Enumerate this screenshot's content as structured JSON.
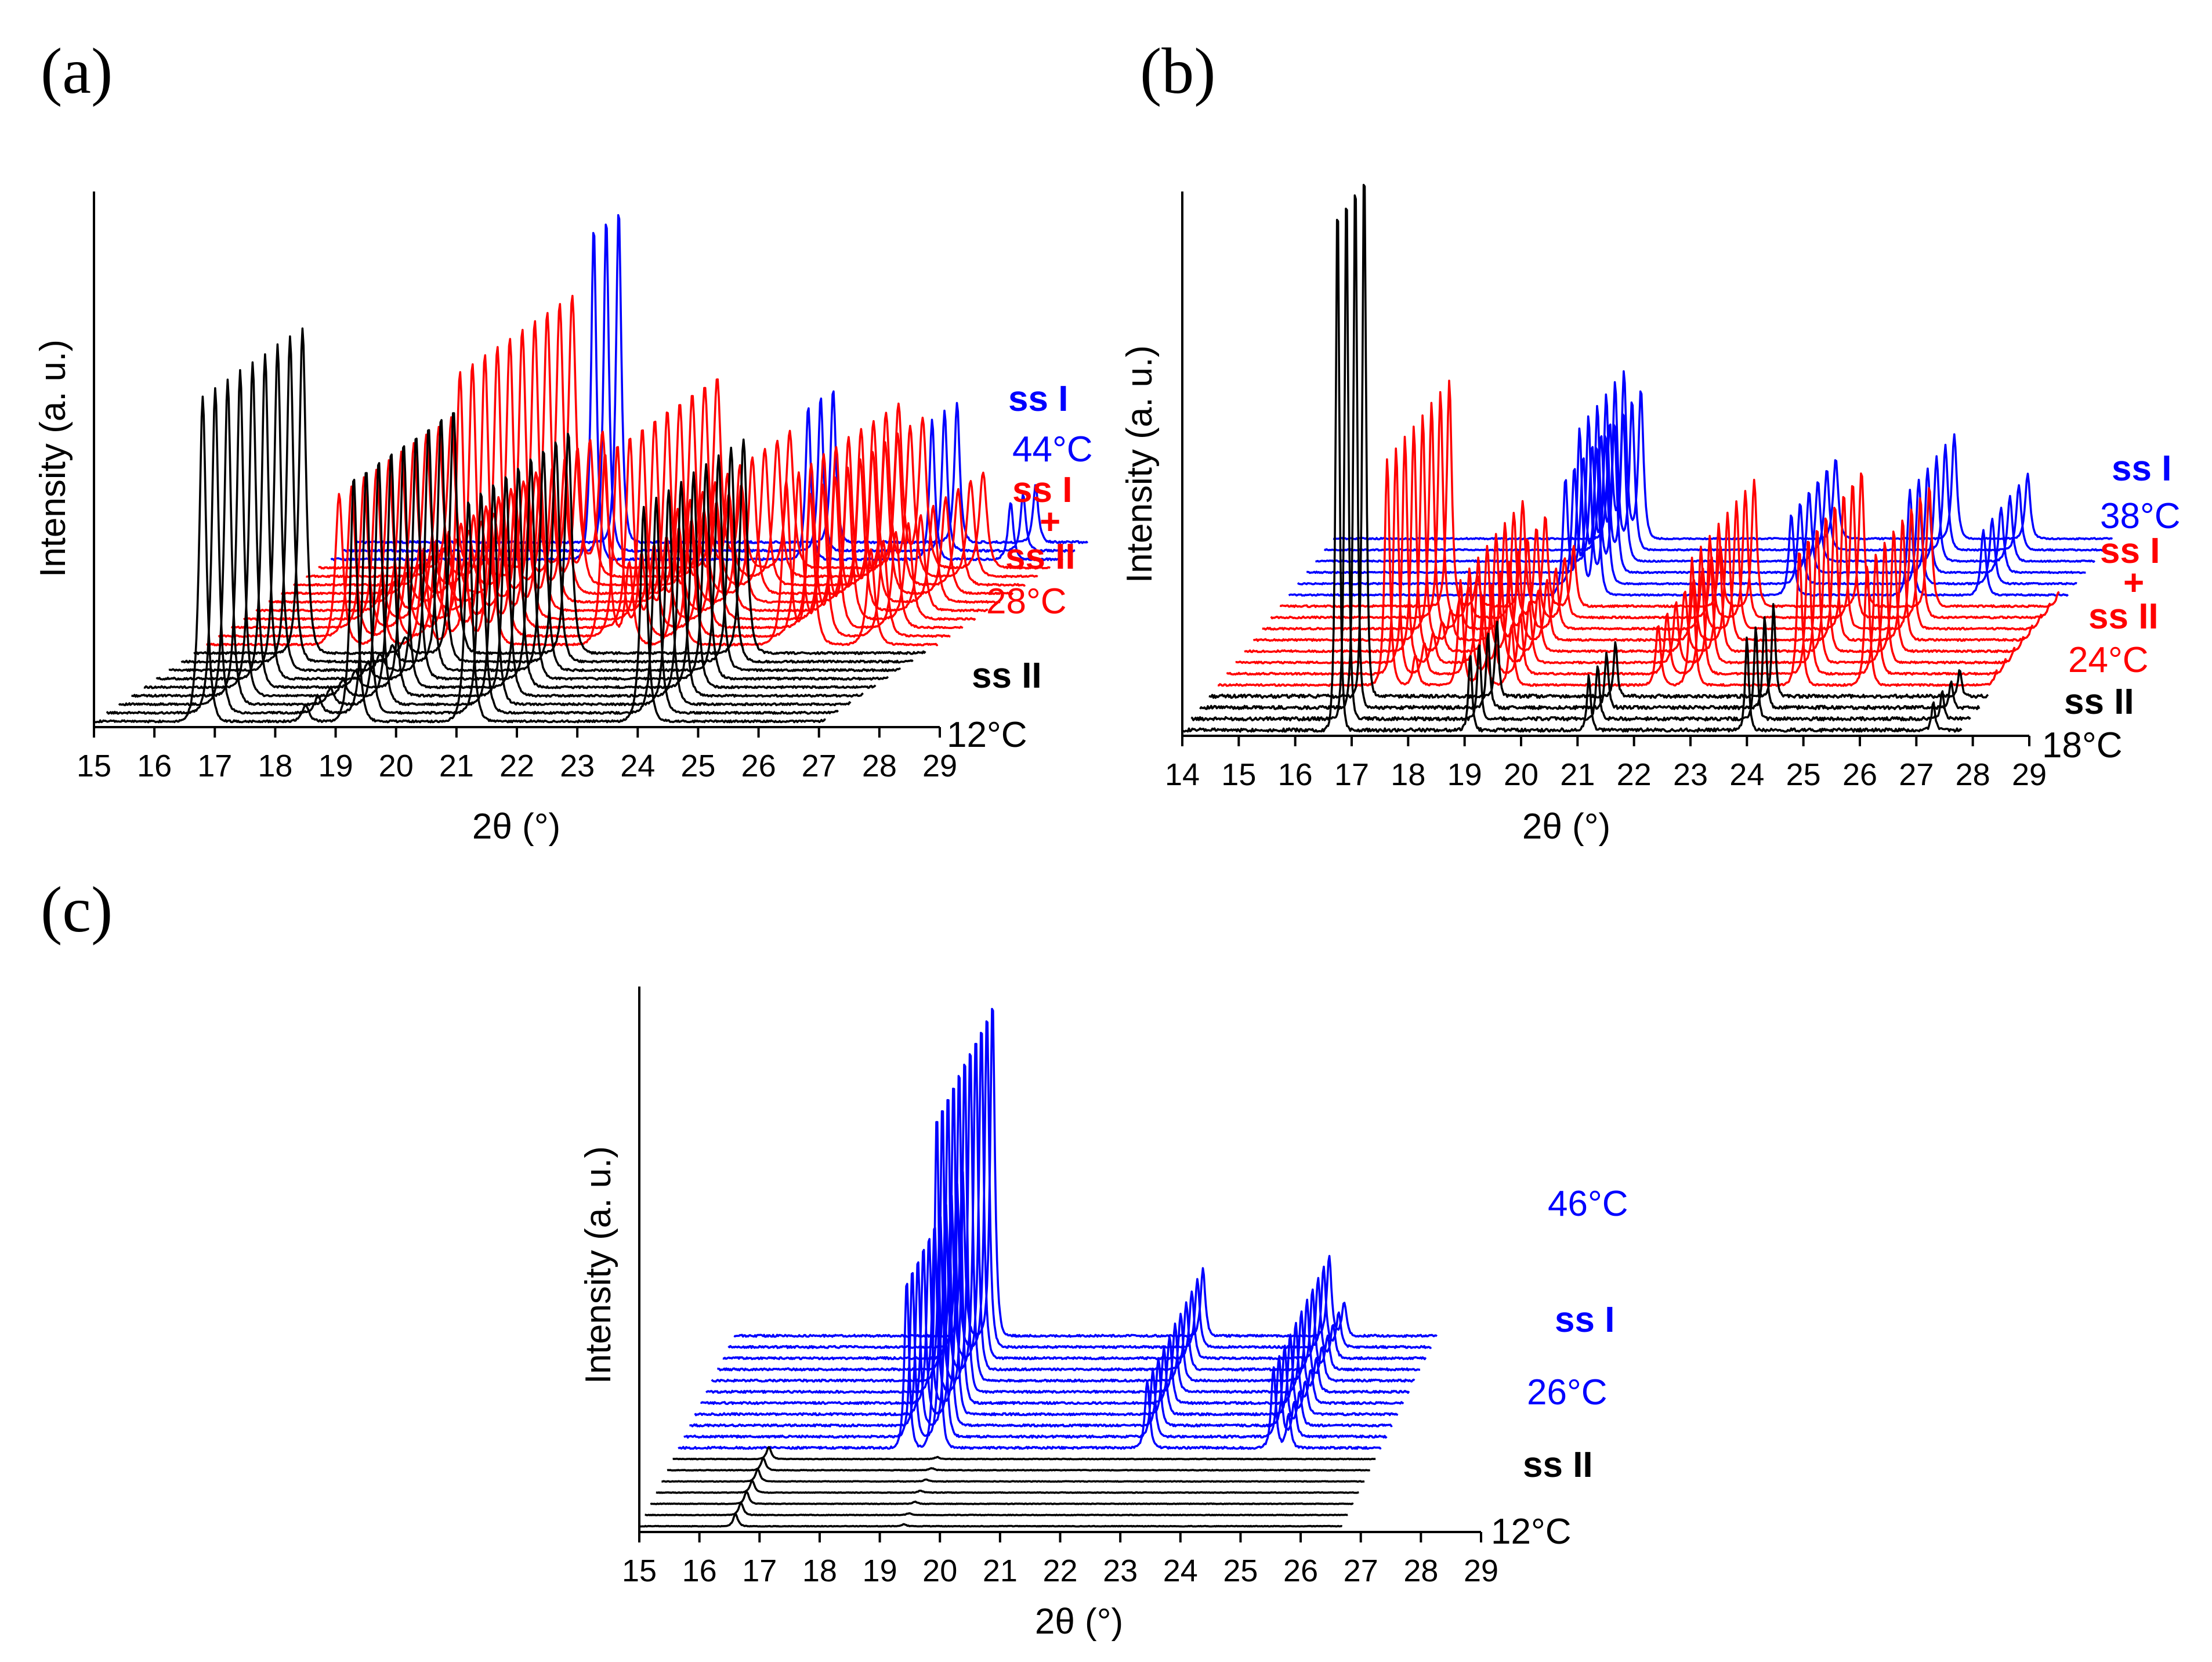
{
  "figure": {
    "colors": {
      "low": "#000000",
      "mid": "#ff0000",
      "high": "#0000ff"
    }
  },
  "chart_data": [
    {
      "panel": "(a)",
      "type": "line",
      "subtype": "stacked waterfall",
      "xlabel": "2θ (°)",
      "ylabel": "Intensity (a. u.)",
      "xlim": [
        15,
        29
      ],
      "xticks": [
        "15",
        "16",
        "17",
        "18",
        "19",
        "20",
        "21",
        "22",
        "23",
        "24",
        "25",
        "26",
        "27",
        "28",
        "29"
      ],
      "traces": {
        "black": 9,
        "red": 10,
        "blue": 3
      },
      "phase_peaks": {
        "ss II": [
          [
            16.8,
            1.0
          ],
          [
            19.3,
            0.75
          ],
          [
            21.2,
            0.68
          ],
          [
            24.1,
            0.66
          ],
          [
            27.4,
            0.43
          ],
          [
            18.5,
            0.05
          ]
        ],
        "mix": [
          [
            17.2,
            0.55
          ],
          [
            17.9,
            0.2
          ],
          [
            18.6,
            0.35
          ],
          [
            19.2,
            1.0
          ],
          [
            19.7,
            0.5
          ],
          [
            21.6,
            0.7
          ],
          [
            22.0,
            0.3
          ],
          [
            22.8,
            0.5
          ],
          [
            24.6,
            0.6
          ],
          [
            25.0,
            0.55
          ],
          [
            26.0,
            0.35
          ],
          [
            28.1,
            0.25
          ]
        ],
        "ss I": [
          [
            19.35,
            1.0
          ],
          [
            22.9,
            0.46
          ],
          [
            24.95,
            0.42
          ],
          [
            26.25,
            0.17
          ]
        ]
      },
      "annotations": [
        {
          "text": "ss I",
          "color": "blue",
          "bold": true
        },
        {
          "text": "44°C",
          "color": "blue",
          "bold": false
        },
        {
          "text": "ss I",
          "color": "red",
          "bold": true
        },
        {
          "text": "+",
          "color": "red",
          "bold": true
        },
        {
          "text": "ss II",
          "color": "red",
          "bold": true
        },
        {
          "text": "28°C",
          "color": "red",
          "bold": false
        },
        {
          "text": "ss II",
          "color": "black",
          "bold": true
        },
        {
          "text": "12°C",
          "color": "black",
          "bold": false
        }
      ]
    },
    {
      "panel": "(b)",
      "type": "line",
      "subtype": "stacked waterfall",
      "xlabel": "2θ (°)",
      "ylabel": "Intensity (a. u.)",
      "xlim": [
        14,
        29
      ],
      "xticks": [
        "14",
        "15",
        "16",
        "17",
        "18",
        "19",
        "20",
        "21",
        "22",
        "23",
        "24",
        "25",
        "26",
        "27",
        "28",
        "29"
      ],
      "traces": {
        "black": 4,
        "red": 8,
        "blue": 6
      },
      "phase_peaks": {
        "ss II": [
          [
            16.75,
            1.0
          ],
          [
            19.1,
            0.14
          ],
          [
            21.2,
            0.1
          ],
          [
            24.0,
            0.17
          ],
          [
            27.3,
            0.05
          ]
        ],
        "mix": [
          [
            17.0,
            0.75
          ],
          [
            17.5,
            0.1
          ],
          [
            18.3,
            0.35
          ],
          [
            18.7,
            0.3
          ],
          [
            19.2,
            0.2
          ],
          [
            21.8,
            0.2
          ],
          [
            22.4,
            0.42
          ],
          [
            24.3,
            0.45
          ],
          [
            25.5,
            0.4
          ],
          [
            27.8,
            0.05
          ]
        ],
        "ss I": [
          [
            18.9,
            0.5
          ],
          [
            19.15,
            0.72
          ],
          [
            19.45,
            0.65
          ],
          [
            22.9,
            0.35
          ],
          [
            25.0,
            0.45
          ],
          [
            26.3,
            0.28
          ]
        ]
      },
      "annotations": [
        {
          "text": "ss I",
          "color": "blue",
          "bold": true
        },
        {
          "text": "38°C",
          "color": "blue",
          "bold": false
        },
        {
          "text": "ss I",
          "color": "red",
          "bold": true
        },
        {
          "text": "+",
          "color": "red",
          "bold": true
        },
        {
          "text": "ss II",
          "color": "red",
          "bold": true
        },
        {
          "text": "24°C",
          "color": "red",
          "bold": false
        },
        {
          "text": "ss II",
          "color": "black",
          "bold": true
        },
        {
          "text": "18°C",
          "color": "black",
          "bold": false
        }
      ]
    },
    {
      "panel": "(c)",
      "type": "line",
      "subtype": "stacked waterfall",
      "xlabel": "2θ (°)",
      "ylabel": "Intensity (a. u.)",
      "xlim": [
        15,
        29
      ],
      "xticks": [
        "15",
        "16",
        "17",
        "18",
        "19",
        "20",
        "21",
        "22",
        "23",
        "24",
        "25",
        "26",
        "27",
        "28",
        "29"
      ],
      "traces": {
        "black": 7,
        "blue": 11
      },
      "phase_peaks": {
        "ss II": [
          [
            16.6,
            0.12
          ],
          [
            27.6,
            0.06
          ],
          [
            19.4,
            0.02
          ]
        ],
        "ss I": [
          [
            18.8,
            0.5
          ],
          [
            19.3,
            1.0
          ],
          [
            22.8,
            0.2
          ],
          [
            24.9,
            0.24
          ],
          [
            25.15,
            0.1
          ]
        ]
      },
      "annotations": [
        {
          "text": "46°C",
          "color": "blue",
          "bold": false
        },
        {
          "text": "ss I",
          "color": "blue",
          "bold": true
        },
        {
          "text": "26°C",
          "color": "blue",
          "bold": false
        },
        {
          "text": "ss II",
          "color": "black",
          "bold": true
        },
        {
          "text": "12°C",
          "color": "black",
          "bold": false
        }
      ]
    }
  ]
}
